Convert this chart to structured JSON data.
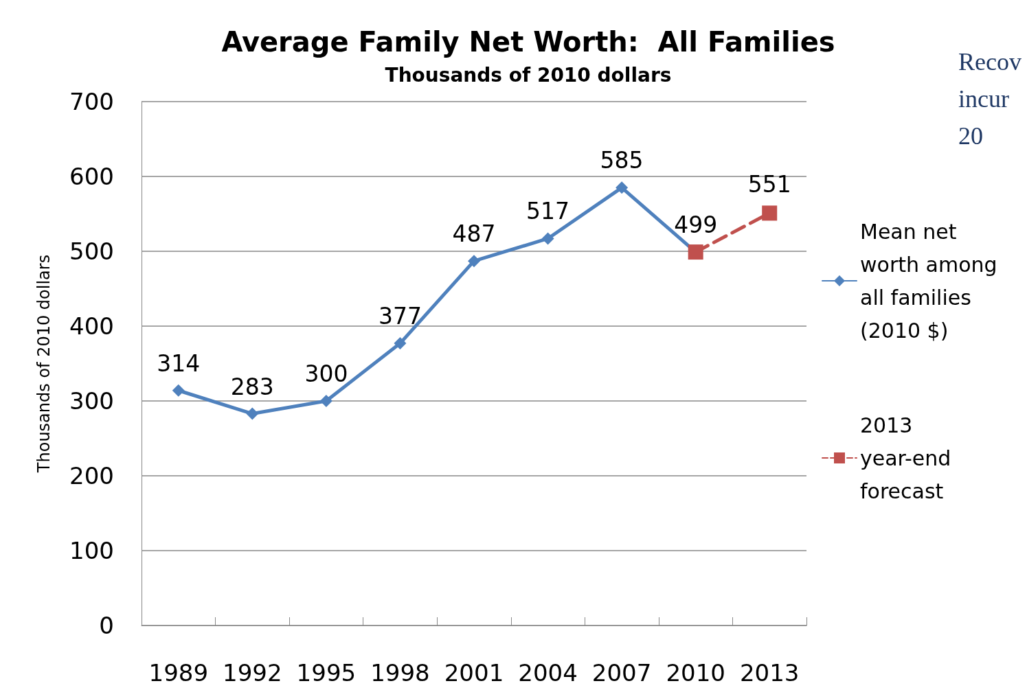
{
  "chart_data": {
    "type": "line",
    "title": "Average Family Net Worth:  All Families",
    "subtitle": "Thousands of 2010 dollars",
    "ylabel": "Thousands of 2010 dollars",
    "categories": [
      "1989",
      "1992",
      "1995",
      "1998",
      "2001",
      "2004",
      "2007",
      "2010",
      "2013"
    ],
    "series": [
      {
        "name": "Mean net worth among all families (2010 $)",
        "color": "#4f81bd",
        "marker": "diamond",
        "line_style": "solid",
        "values": [
          314,
          283,
          300,
          377,
          487,
          517,
          585,
          499,
          null
        ],
        "value_labels": [
          "314",
          "283",
          "300",
          "377",
          "487",
          "517",
          "585",
          "499",
          null
        ]
      },
      {
        "name": "2013 year-end forecast",
        "color": "#c0504d",
        "marker": "square",
        "line_style": "dashed",
        "values": [
          null,
          null,
          null,
          null,
          null,
          null,
          null,
          499,
          551
        ],
        "value_labels": [
          null,
          null,
          null,
          null,
          null,
          null,
          null,
          null,
          "551"
        ]
      }
    ],
    "ylim": [
      0,
      700
    ],
    "yticks": [
      0,
      100,
      200,
      300,
      400,
      500,
      600,
      700
    ],
    "grid": "y",
    "legend": "right",
    "annotations": [
      "Recov\nincur\n20"
    ]
  }
}
